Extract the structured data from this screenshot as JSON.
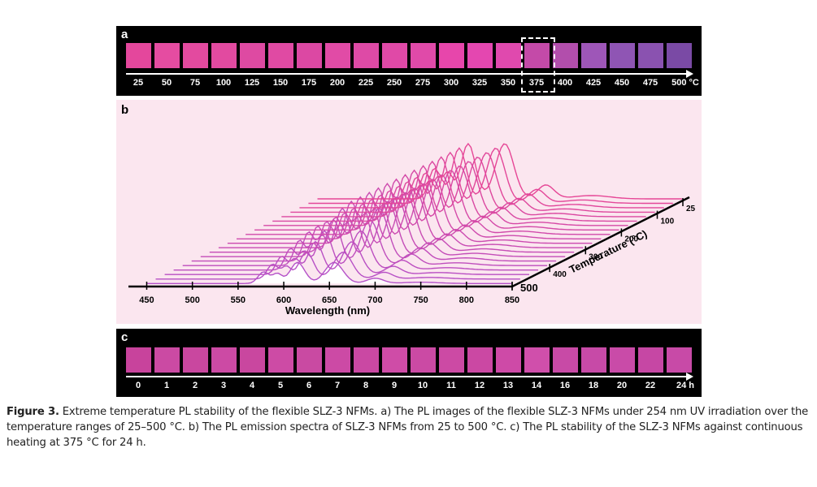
{
  "panel_a": {
    "label": "a",
    "ticks": [
      "25",
      "50",
      "75",
      "100",
      "125",
      "150",
      "175",
      "200",
      "225",
      "250",
      "275",
      "300",
      "325",
      "350",
      "375",
      "400",
      "425",
      "450",
      "475",
      "500 °C"
    ],
    "colors": [
      "#e4479c",
      "#e54ca1",
      "#e34a9f",
      "#e24aa0",
      "#de4aa2",
      "#e04aa3",
      "#dc48a3",
      "#e14ba6",
      "#de4aa6",
      "#e049a7",
      "#e04aa9",
      "#e746ab",
      "#e447b0",
      "#e049ae",
      "#c44aa8",
      "#b24eac",
      "#9e56b8",
      "#8f55b4",
      "#8a52b0",
      "#7a4aa5"
    ]
  },
  "panel_b": {
    "label": "b",
    "x_label": "Wavelength (nm)",
    "x_ticks": [
      "450",
      "500",
      "550",
      "600",
      "650",
      "700",
      "750",
      "800",
      "850"
    ],
    "z_label": "Temperature (°C)",
    "z_ticks": [
      "25",
      "100",
      "200",
      "300",
      "400",
      "500"
    ]
  },
  "panel_c": {
    "label": "c",
    "ticks": [
      "0",
      "1",
      "2",
      "3",
      "4",
      "5",
      "6",
      "7",
      "8",
      "9",
      "10",
      "11",
      "12",
      "13",
      "14",
      "16",
      "18",
      "20",
      "22",
      "24 h"
    ],
    "colors": [
      "#c8439c",
      "#cb4aa3",
      "#c9479f",
      "#cc4aa4",
      "#c9479f",
      "#cd4ba5",
      "#c94aa2",
      "#cc4aa5",
      "#ca48a3",
      "#cf4ca7",
      "#cb4aa4",
      "#cc4aa4",
      "#cb48a3",
      "#ce4aa7",
      "#d04fab",
      "#c84aa6",
      "#c74aa7",
      "#c94ba8",
      "#c647a4",
      "#c84aa7"
    ]
  },
  "caption": {
    "label": "Figure 3.",
    "text": "Extreme temperature PL stability of the flexible SLZ-3 NFMs. a) The PL images of the flexible SLZ-3 NFMs under 254 nm UV irradiation over the temperature ranges of 25–500 °C. b) The PL emission spectra of SLZ-3 NFMs from 25 to 500 °C. c) The PL stability of the SLZ-3 NFMs against continuous heating at 375 °C for 24 h."
  }
}
